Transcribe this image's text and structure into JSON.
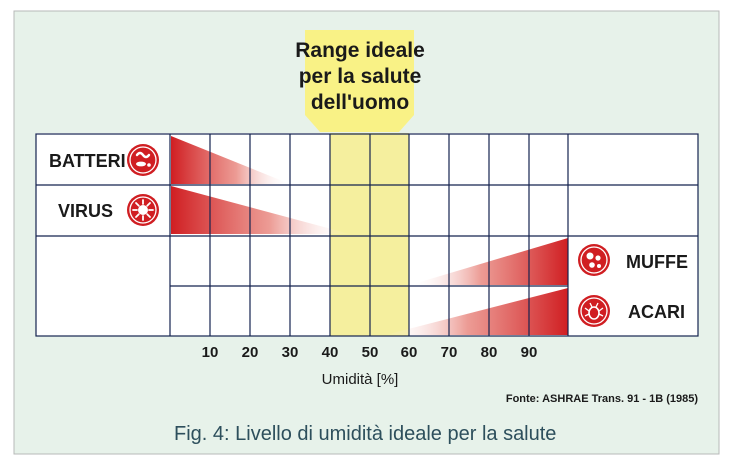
{
  "range_label": [
    "Range ideale",
    "per la salute",
    "dell'uomo"
  ],
  "rows": [
    {
      "label": "BATTERI",
      "icon": "bacteria-icon"
    },
    {
      "label": "VIRUS",
      "icon": "virus-icon"
    },
    {
      "label": "MUFFE",
      "icon": "mold-icon"
    },
    {
      "label": "ACARI",
      "icon": "mite-icon"
    }
  ],
  "ticks": [
    "10",
    "20",
    "30",
    "40",
    "50",
    "60",
    "70",
    "80",
    "90"
  ],
  "axis_label": "Umidità [%]",
  "source": "Fonte: ASHRAE Trans. 91 - 1B (1985)",
  "caption": "Fig. 4: Livello di umidità ideale per la salute",
  "colors": {
    "panel_bg": "#e7f2ea",
    "ideal_band": "#f5ef9e",
    "range_box": "#f9f286",
    "grid": "#15234f",
    "risk_red": "#d01e22",
    "caption_text": "#2d4f5c"
  }
}
